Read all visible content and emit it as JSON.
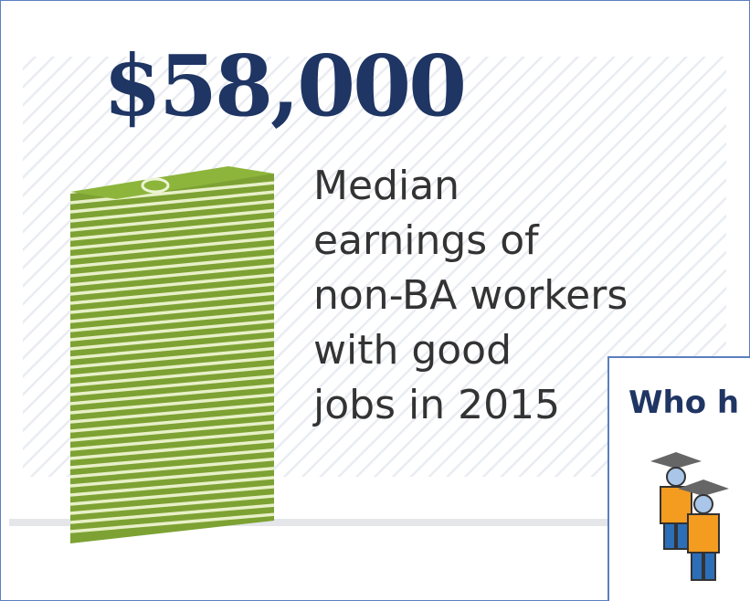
{
  "headline": "$58,000",
  "description": [
    "Median",
    "earnings of",
    "non-BA workers",
    "with good",
    "jobs in 2015"
  ],
  "inset": {
    "title": "Who h"
  }
}
